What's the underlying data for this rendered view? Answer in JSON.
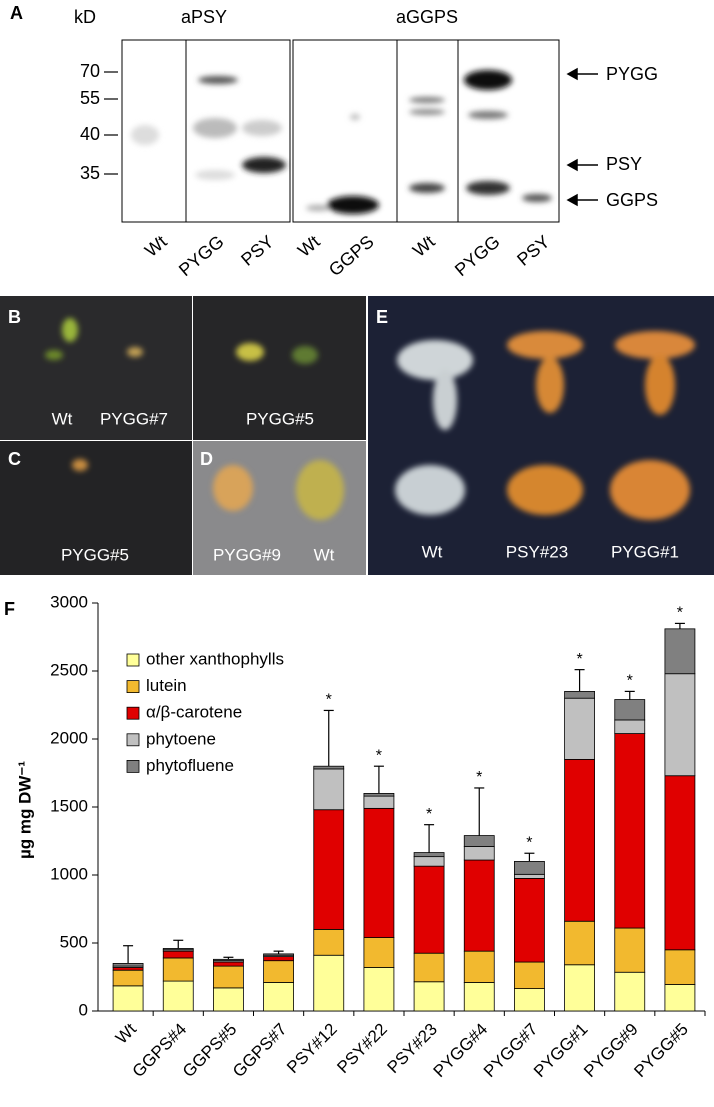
{
  "panel_a": {
    "label": "A",
    "unit": "kD",
    "antibodies": [
      "aPSY",
      "aGGPS"
    ],
    "markers": [
      "70",
      "55",
      "40",
      "35"
    ],
    "bands": [
      "PYGG",
      "PSY",
      "GGPS"
    ],
    "lanes": [
      "Wt",
      "PYGG",
      "PSY",
      "Wt",
      "GGPS",
      "Wt",
      "PYGG",
      "PSY"
    ]
  },
  "panel_b": {
    "label": "B",
    "captions": [
      "Wt",
      "PYGG#7",
      "PYGG#5"
    ]
  },
  "panel_c": {
    "label": "C",
    "captions": [
      "PYGG#5"
    ]
  },
  "panel_d": {
    "label": "D",
    "captions": [
      "PYGG#9",
      "Wt"
    ]
  },
  "panel_e": {
    "label": "E",
    "captions": [
      "Wt",
      "PSY#23",
      "PYGG#1"
    ]
  },
  "chart_data": {
    "type": "bar",
    "stacked": true,
    "panel_label": "F",
    "y_label": "µg mg DW⁻¹",
    "categories": [
      "Wt",
      "GGPS#4",
      "GGPS#5",
      "GGPS#7",
      "PSY#12",
      "PSY#22",
      "PSY#23",
      "PYGG#4",
      "PYGG#7",
      "PYGG#1",
      "PYGG#9",
      "PYGG#5"
    ],
    "series": [
      {
        "name": "other xanthophylls",
        "color": "#ffff99",
        "values": [
          185,
          220,
          170,
          210,
          410,
          320,
          215,
          210,
          165,
          340,
          285,
          195
        ]
      },
      {
        "name": "lutein",
        "color": "#f2b92f",
        "values": [
          115,
          170,
          160,
          160,
          190,
          220,
          210,
          230,
          195,
          320,
          325,
          255
        ]
      },
      {
        "name": "α/β-carotene",
        "color": "#e00000",
        "values": [
          20,
          50,
          30,
          30,
          880,
          950,
          640,
          670,
          615,
          1190,
          1430,
          1280
        ]
      },
      {
        "name": "phytoene",
        "color": "#c0c0c0",
        "values": [
          10,
          10,
          10,
          10,
          300,
          90,
          70,
          100,
          30,
          450,
          100,
          750
        ]
      },
      {
        "name": "phytofluene",
        "color": "#808080",
        "values": [
          20,
          10,
          10,
          10,
          20,
          20,
          30,
          80,
          95,
          50,
          150,
          330
        ]
      }
    ],
    "errors": [
      130,
      60,
      15,
      20,
      410,
      200,
      205,
      350,
      60,
      160,
      60,
      40
    ],
    "significance": [
      null,
      null,
      null,
      null,
      "*",
      "*",
      "*",
      "*",
      "*",
      "*",
      "*",
      "*"
    ],
    "ylim": [
      0,
      3000
    ],
    "yticks": [
      0,
      500,
      1000,
      1500,
      2000,
      2500,
      3000
    ],
    "grid": false,
    "legend": "upper-left"
  }
}
